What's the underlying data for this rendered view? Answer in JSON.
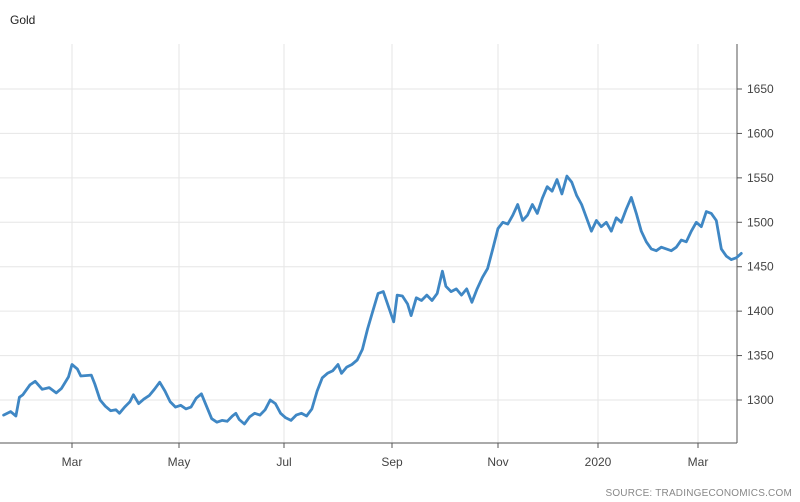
{
  "chart_data": {
    "type": "line",
    "title": "Gold",
    "xlabel": "",
    "ylabel": "",
    "x_ticks": [
      "Mar",
      "May",
      "Jul",
      "Sep",
      "Nov",
      "2020",
      "Mar"
    ],
    "y_ticks": [
      1300,
      1350,
      1400,
      1450,
      1500,
      1550,
      1600,
      1650
    ],
    "ylim": [
      1250,
      1690
    ],
    "xlim": [
      "2019-01-21",
      "2020-03-27"
    ],
    "grid": true,
    "y_axis_side": "right",
    "series": [
      {
        "color": "#3f87c4",
        "points": [
          [
            "2019-01-21",
            1283
          ],
          [
            "2019-01-25",
            1287
          ],
          [
            "2019-01-28",
            1282
          ],
          [
            "2019-01-30",
            1303
          ],
          [
            "2019-02-01",
            1306
          ],
          [
            "2019-02-05",
            1317
          ],
          [
            "2019-02-08",
            1321
          ],
          [
            "2019-02-12",
            1312
          ],
          [
            "2019-02-16",
            1314
          ],
          [
            "2019-02-20",
            1308
          ],
          [
            "2019-02-23",
            1313
          ],
          [
            "2019-02-27",
            1326
          ],
          [
            "2019-03-01",
            1340
          ],
          [
            "2019-03-04",
            1335
          ],
          [
            "2019-03-06",
            1327
          ],
          [
            "2019-03-12",
            1328
          ],
          [
            "2019-03-14",
            1318
          ],
          [
            "2019-03-17",
            1300
          ],
          [
            "2019-03-20",
            1293
          ],
          [
            "2019-03-23",
            1288
          ],
          [
            "2019-03-26",
            1289
          ],
          [
            "2019-03-28",
            1285
          ],
          [
            "2019-03-31",
            1292
          ],
          [
            "2019-04-03",
            1298
          ],
          [
            "2019-04-05",
            1306
          ],
          [
            "2019-04-08",
            1296
          ],
          [
            "2019-04-11",
            1301
          ],
          [
            "2019-04-14",
            1305
          ],
          [
            "2019-04-17",
            1312
          ],
          [
            "2019-04-20",
            1320
          ],
          [
            "2019-04-23",
            1310
          ],
          [
            "2019-04-26",
            1298
          ],
          [
            "2019-04-29",
            1292
          ],
          [
            "2019-05-02",
            1294
          ],
          [
            "2019-05-05",
            1290
          ],
          [
            "2019-05-08",
            1292
          ],
          [
            "2019-05-11",
            1302
          ],
          [
            "2019-05-14",
            1307
          ],
          [
            "2019-05-17",
            1293
          ],
          [
            "2019-05-20",
            1279
          ],
          [
            "2019-05-23",
            1275
          ],
          [
            "2019-05-26",
            1277
          ],
          [
            "2019-05-29",
            1276
          ],
          [
            "2019-06-01",
            1282
          ],
          [
            "2019-06-03",
            1285
          ],
          [
            "2019-06-05",
            1278
          ],
          [
            "2019-06-08",
            1273
          ],
          [
            "2019-06-11",
            1281
          ],
          [
            "2019-06-14",
            1285
          ],
          [
            "2019-06-17",
            1283
          ],
          [
            "2019-06-20",
            1289
          ],
          [
            "2019-06-23",
            1300
          ],
          [
            "2019-06-26",
            1296
          ],
          [
            "2019-06-29",
            1285
          ],
          [
            "2019-07-02",
            1280
          ],
          [
            "2019-07-05",
            1277
          ],
          [
            "2019-07-08",
            1283
          ],
          [
            "2019-07-11",
            1285
          ],
          [
            "2019-07-14",
            1282
          ],
          [
            "2019-07-17",
            1290
          ],
          [
            "2019-07-20",
            1310
          ],
          [
            "2019-07-23",
            1325
          ],
          [
            "2019-07-26",
            1330
          ],
          [
            "2019-07-29",
            1333
          ],
          [
            "2019-08-01",
            1340
          ],
          [
            "2019-08-03",
            1330
          ],
          [
            "2019-08-06",
            1337
          ],
          [
            "2019-08-09",
            1340
          ],
          [
            "2019-08-12",
            1345
          ],
          [
            "2019-08-15",
            1357
          ],
          [
            "2019-08-18",
            1380
          ],
          [
            "2019-08-21",
            1400
          ],
          [
            "2019-08-24",
            1420
          ],
          [
            "2019-08-27",
            1422
          ],
          [
            "2019-08-30",
            1405
          ],
          [
            "2019-09-02",
            1388
          ],
          [
            "2019-09-04",
            1418
          ],
          [
            "2019-09-07",
            1417
          ],
          [
            "2019-09-10",
            1408
          ],
          [
            "2019-09-12",
            1395
          ],
          [
            "2019-09-15",
            1415
          ],
          [
            "2019-09-18",
            1412
          ],
          [
            "2019-09-21",
            1418
          ],
          [
            "2019-09-24",
            1412
          ],
          [
            "2019-09-27",
            1420
          ],
          [
            "2019-09-30",
            1445
          ],
          [
            "2019-10-02",
            1428
          ],
          [
            "2019-10-05",
            1422
          ],
          [
            "2019-10-08",
            1425
          ],
          [
            "2019-10-11",
            1418
          ],
          [
            "2019-10-14",
            1425
          ],
          [
            "2019-10-17",
            1410
          ],
          [
            "2019-10-20",
            1425
          ],
          [
            "2019-10-23",
            1438
          ],
          [
            "2019-10-26",
            1448
          ],
          [
            "2019-10-29",
            1470
          ],
          [
            "2019-11-01",
            1493
          ],
          [
            "2019-11-04",
            1500
          ],
          [
            "2019-11-07",
            1498
          ],
          [
            "2019-11-10",
            1508
          ],
          [
            "2019-11-13",
            1520
          ],
          [
            "2019-11-16",
            1502
          ],
          [
            "2019-11-19",
            1508
          ],
          [
            "2019-11-22",
            1520
          ],
          [
            "2019-11-25",
            1510
          ],
          [
            "2019-11-28",
            1527
          ],
          [
            "2019-12-01",
            1540
          ],
          [
            "2019-12-04",
            1535
          ],
          [
            "2019-12-07",
            1548
          ],
          [
            "2019-12-10",
            1532
          ],
          [
            "2019-12-13",
            1552
          ],
          [
            "2019-12-16",
            1545
          ],
          [
            "2019-12-19",
            1530
          ],
          [
            "2019-12-22",
            1520
          ],
          [
            "2019-12-25",
            1505
          ],
          [
            "2019-12-28",
            1490
          ],
          [
            "2019-12-31",
            1502
          ],
          [
            "2020-01-03",
            1495
          ],
          [
            "2020-01-06",
            1500
          ],
          [
            "2020-01-09",
            1490
          ],
          [
            "2020-01-12",
            1505
          ],
          [
            "2020-01-15",
            1500
          ],
          [
            "2020-01-18",
            1515
          ],
          [
            "2020-01-21",
            1528
          ],
          [
            "2020-01-24",
            1510
          ],
          [
            "2020-01-27",
            1490
          ],
          [
            "2020-01-30",
            1478
          ],
          [
            "2020-02-02",
            1470
          ],
          [
            "2020-02-05",
            1468
          ],
          [
            "2020-02-08",
            1472
          ],
          [
            "2020-02-11",
            1470
          ],
          [
            "2020-02-14",
            1468
          ],
          [
            "2020-02-17",
            1472
          ],
          [
            "2020-02-20",
            1480
          ],
          [
            "2020-02-23",
            1478
          ],
          [
            "2020-02-26",
            1490
          ],
          [
            "2020-02-29",
            1500
          ],
          [
            "2020-03-03",
            1495
          ],
          [
            "2020-03-06",
            1512
          ],
          [
            "2020-03-09",
            1510
          ],
          [
            "2020-03-12",
            1502
          ],
          [
            "2020-03-15",
            1470
          ],
          [
            "2020-03-18",
            1462
          ],
          [
            "2020-03-21",
            1458
          ],
          [
            "2020-03-24",
            1460
          ],
          [
            "2020-03-27",
            1465
          ]
        ]
      }
    ]
  },
  "source": "SOURCE: TRADINGECONOMICS.COM"
}
